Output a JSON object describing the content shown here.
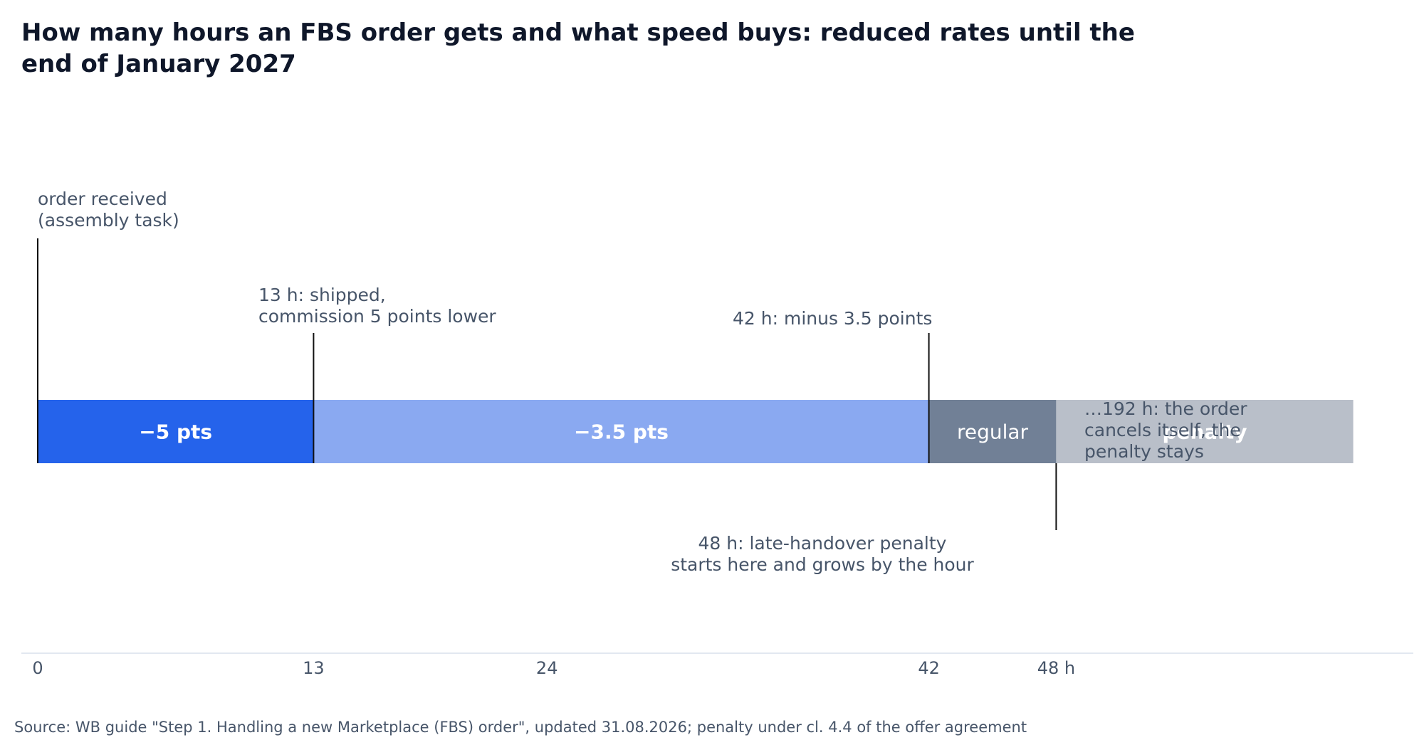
{
  "chart_data": {
    "type": "timeline",
    "title": "How many hours an FBS order gets and what speed buys: reduced rates until the end of January 2027",
    "x_unit": "h",
    "segments": [
      {
        "label": "−5 pts",
        "start": 0,
        "end": 13,
        "color": "#2563eb"
      },
      {
        "label": "−3.5 pts",
        "start": 13,
        "end": 42,
        "color": "#8aa9f1"
      },
      {
        "label": "regular",
        "start": 42,
        "end": 48,
        "color": "#718096"
      },
      {
        "label": "penalty",
        "start": 48,
        "end": 62,
        "color": "#b9bfc9"
      }
    ],
    "markers": [
      {
        "x": 0,
        "lines": [
          "order received",
          "(assembly task)"
        ]
      },
      {
        "x": 13,
        "lines": [
          "13 h: shipped,",
          "commission 5 points lower"
        ]
      },
      {
        "x": 42,
        "lines": [
          "42 h: minus 3.5 points"
        ]
      },
      {
        "x": 48,
        "lines": [
          "48 h: late-handover penalty",
          "starts here and grows by the hour"
        ]
      }
    ],
    "end_note": [
      "…192 h: the order",
      "cancels itself, the",
      "penalty stays"
    ],
    "ticks": [
      {
        "value": 0,
        "label": "0"
      },
      {
        "value": 13,
        "label": "13"
      },
      {
        "value": 24,
        "label": "24"
      },
      {
        "value": 42,
        "label": "42"
      },
      {
        "value": 48,
        "label": "48 h"
      }
    ],
    "colors": {
      "title": "#0f172a",
      "text": "#475569",
      "marker": "#111111",
      "axis": "#e2e8f0",
      "segment_text": "#ffffff"
    }
  },
  "source": "Source: WB guide \"Step 1. Handling a new Marketplace (FBS) order\", updated 31.08.2026; penalty under cl. 4.4 of the offer agreement"
}
